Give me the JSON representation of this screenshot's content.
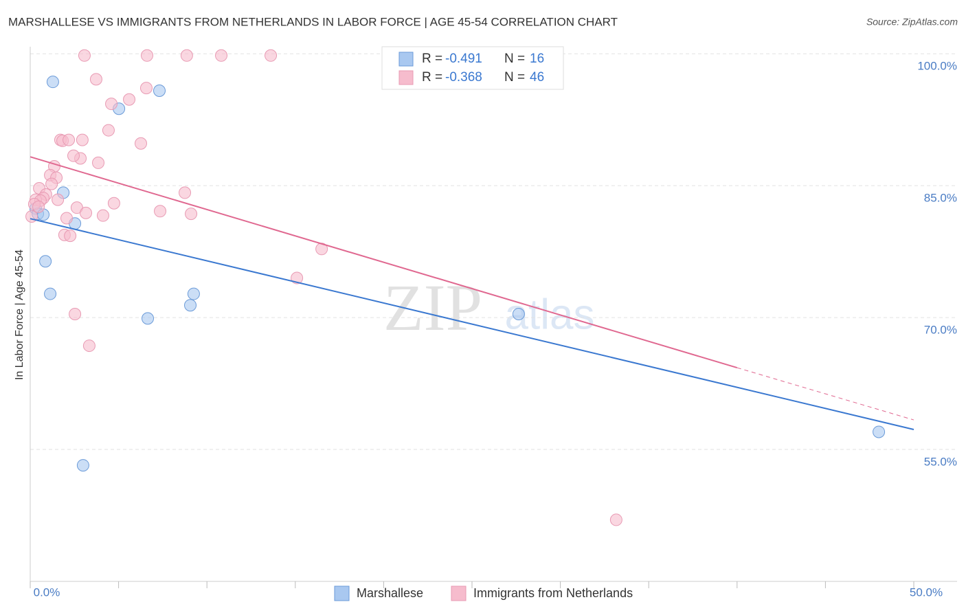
{
  "chart_data": {
    "type": "scatter",
    "title": "MARSHALLESE VS IMMIGRANTS FROM NETHERLANDS IN LABOR FORCE | AGE 45-54 CORRELATION CHART",
    "source": "Source: ZipAtlas.com",
    "y_label": "In Labor Force | Age 45-54",
    "watermark": [
      "ZIP",
      "atlas"
    ],
    "xlim": [
      0,
      50
    ],
    "ylim": [
      40,
      100.8
    ],
    "xticks": [
      {
        "value": 0,
        "label": "0.0%"
      },
      {
        "value": 50,
        "label": "50.0%"
      }
    ],
    "xminorticks": [
      5,
      10,
      15,
      20,
      25,
      30,
      35,
      40,
      45
    ],
    "yticks": [
      {
        "value": 100,
        "label": "100.0%"
      },
      {
        "value": 85,
        "label": "85.0%"
      },
      {
        "value": 70,
        "label": "70.0%"
      },
      {
        "value": 55,
        "label": "55.0%"
      }
    ],
    "grid": true,
    "legend_stat_labels": [
      "R =",
      "N ="
    ],
    "series": [
      {
        "name": "Marshallese",
        "color": "#6a9ad8",
        "fill": "#a9c8f0",
        "r": -0.491,
        "n": 16,
        "x": [
          1.28,
          7.31,
          5.02,
          1.87,
          0.31,
          0.43,
          0.74,
          2.53,
          0.86,
          1.13,
          9.25,
          9.06,
          6.65,
          27.64,
          48.02,
          2.99
        ],
        "values": [
          96.8,
          95.8,
          93.75,
          84.2,
          82.4,
          81.8,
          81.7,
          80.7,
          76.4,
          72.7,
          72.7,
          71.4,
          69.9,
          70.4,
          57.0,
          53.2
        ],
        "trend": {
          "color": "#3a78d0",
          "x": [
            0,
            50
          ],
          "y": [
            81.25,
            57.27
          ]
        }
      },
      {
        "name": "Immigrants from Netherlands",
        "color": "#e89ab3",
        "fill": "#f6bccd",
        "r": -0.368,
        "n": 46,
        "x": [
          3.07,
          6.61,
          8.86,
          10.81,
          13.61,
          3.73,
          6.57,
          5.6,
          4.59,
          4.43,
          1.71,
          1.83,
          2.18,
          2.95,
          6.26,
          2.84,
          2.45,
          3.85,
          1.36,
          1.13,
          1.48,
          1.21,
          0.51,
          8.75,
          0.89,
          0.74,
          0.31,
          0.58,
          1.56,
          4.74,
          0.23,
          0.47,
          2.64,
          7.35,
          3.15,
          9.1,
          4.12,
          2.06,
          0.08,
          1.94,
          2.26,
          16.49,
          15.09,
          2.53,
          3.34,
          33.16
        ],
        "values": [
          99.8,
          99.8,
          99.8,
          99.8,
          99.8,
          97.1,
          96.1,
          94.8,
          94.3,
          91.3,
          90.2,
          90.1,
          90.2,
          90.2,
          89.8,
          88.1,
          88.4,
          87.6,
          87.2,
          86.2,
          85.9,
          85.2,
          84.7,
          84.2,
          84.0,
          83.6,
          83.4,
          83.3,
          83.4,
          83.0,
          82.9,
          82.6,
          82.5,
          82.1,
          81.9,
          81.8,
          81.6,
          81.3,
          81.5,
          79.4,
          79.3,
          77.8,
          74.5,
          70.4,
          66.8,
          47.0
        ],
        "trend": {
          "color": "#e06890",
          "x": [
            0,
            40,
            50
          ],
          "y": [
            88.28,
            64.3,
            58.36
          ],
          "dashed_from": 40
        }
      }
    ]
  }
}
